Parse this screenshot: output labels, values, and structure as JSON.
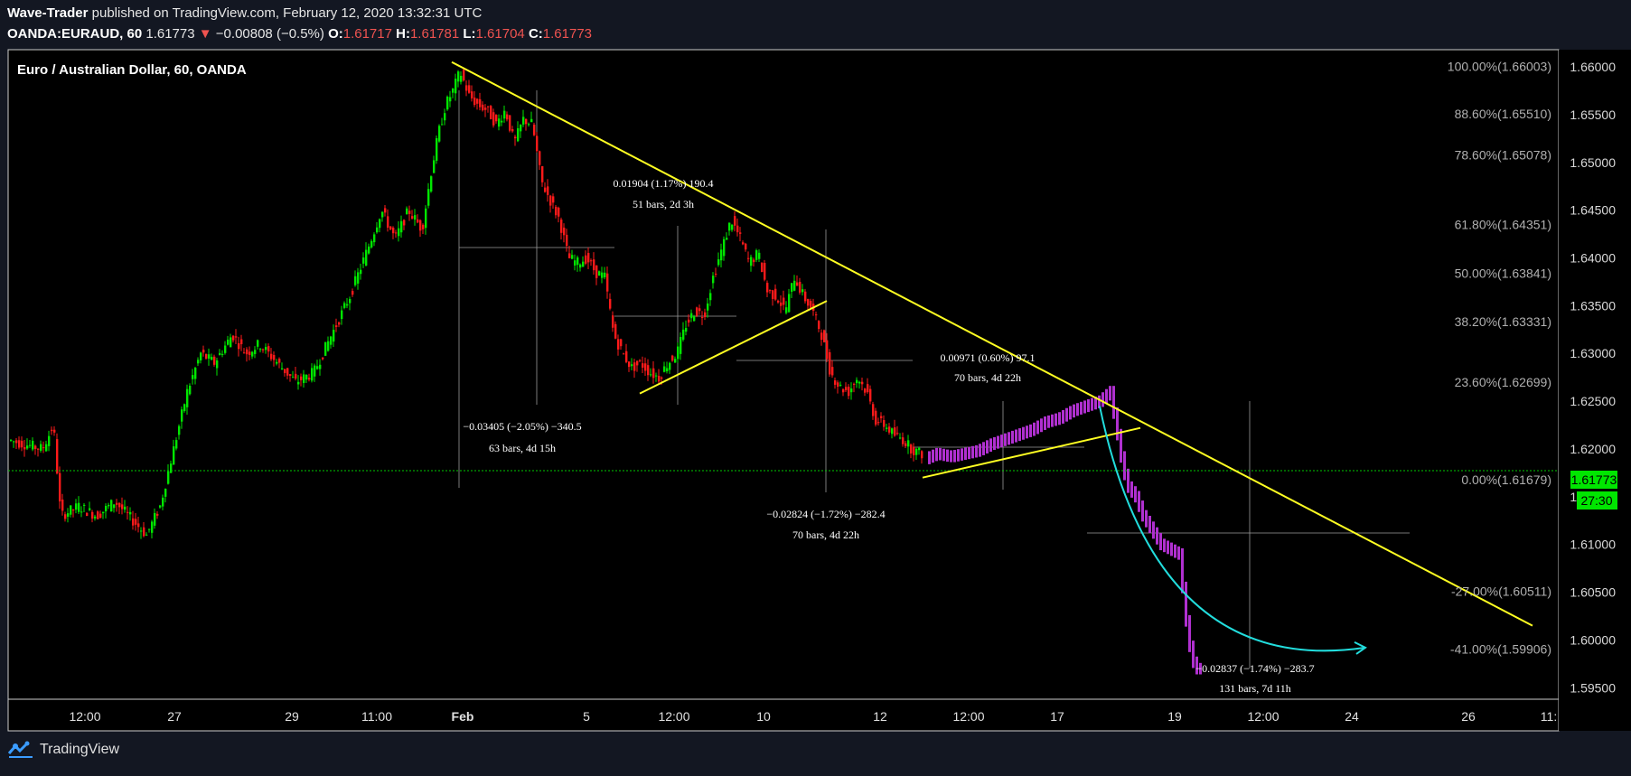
{
  "header": {
    "author": "Wave-Trader",
    "published_text": "published on TradingView.com, February 12, 2020 13:32:31 UTC",
    "symbol": "OANDA:EURAUD, 60",
    "last_price": "1.61773",
    "change_arrow": "▼",
    "change": "−0.00808 (−0.5%)",
    "o_label": "O:",
    "o_value": "1.61717",
    "h_label": "H:",
    "h_value": "1.61781",
    "l_label": "L:",
    "l_value": "1.61704",
    "c_label": "C:",
    "c_value": "1.61773"
  },
  "footer": {
    "brand": "TradingView"
  },
  "colors": {
    "background": "#000000",
    "page": "#131722",
    "up": "#00e600",
    "down": "#ff1a1a",
    "projection": "#b030d0",
    "trendline": "#ffff22",
    "curve": "#22dddd",
    "price_tag": "#00e600"
  },
  "chart_data": {
    "type": "candlestick",
    "title": "Euro / Australian Dollar, 60, OANDA",
    "ylim": [
      1.5938,
      1.6618
    ],
    "y_ticks": [
      "1.66000",
      "1.65500",
      "1.65000",
      "1.64500",
      "1.64000",
      "1.63500",
      "1.63000",
      "1.62500",
      "1.62000",
      "1.61500",
      "1.61000",
      "1.60500",
      "1.60000",
      "1.59500"
    ],
    "x_ticks": [
      "12:00",
      "27",
      "29",
      "11:00",
      "Feb",
      "5",
      "12:00",
      "10",
      "12",
      "12:00",
      "17",
      "19",
      "12:00",
      "24",
      "26",
      "11:"
    ],
    "current_price": "1.61773",
    "countdown": "27:30",
    "fib_levels": [
      {
        "label": "100.00%(1.66003)",
        "value": 1.66003
      },
      {
        "label": "88.60%(1.65510)",
        "value": 1.6551
      },
      {
        "label": "78.60%(1.65078)",
        "value": 1.65078
      },
      {
        "label": "61.80%(1.64351)",
        "value": 1.64351
      },
      {
        "label": "50.00%(1.63841)",
        "value": 1.63841
      },
      {
        "label": "38.20%(1.63331)",
        "value": 1.63331
      },
      {
        "label": "23.60%(1.62699)",
        "value": 1.62699
      },
      {
        "label": "0.00%(1.61679)",
        "value": 1.61679
      },
      {
        "label": "-27.00%(1.60511)",
        "value": 1.60511
      },
      {
        "label": "-41.00%(1.59906)",
        "value": 1.59906
      }
    ],
    "measurements": [
      {
        "line1": "0.01904 (1.17%) 190.4",
        "line2": "51 bars, 2d 3h"
      },
      {
        "line1": "−0.03405 (−2.05%) −340.5",
        "line2": "63 bars, 4d 15h"
      },
      {
        "line1": "0.00971 (0.60%) 97.1",
        "line2": "70 bars, 4d 22h"
      },
      {
        "line1": "−0.02824 (−1.72%) −282.4",
        "line2": "70 bars, 4d 22h"
      },
      {
        "line1": "−0.02837 (−1.74%) −283.7",
        "line2": "131 bars, 7d 11h"
      }
    ],
    "price_path": [
      [
        0,
        1.621
      ],
      [
        40,
        1.62
      ],
      [
        52,
        1.6225
      ],
      [
        60,
        1.613
      ],
      [
        80,
        1.614
      ],
      [
        100,
        1.613
      ],
      [
        120,
        1.6145
      ],
      [
        140,
        1.6125
      ],
      [
        155,
        1.611
      ],
      [
        170,
        1.614
      ],
      [
        185,
        1.62
      ],
      [
        200,
        1.626
      ],
      [
        215,
        1.63
      ],
      [
        230,
        1.629
      ],
      [
        250,
        1.632
      ],
      [
        265,
        1.63
      ],
      [
        280,
        1.631
      ],
      [
        300,
        1.629
      ],
      [
        320,
        1.627
      ],
      [
        340,
        1.628
      ],
      [
        360,
        1.632
      ],
      [
        380,
        1.636
      ],
      [
        400,
        1.641
      ],
      [
        415,
        1.645
      ],
      [
        430,
        1.642
      ],
      [
        445,
        1.645
      ],
      [
        460,
        1.643
      ],
      [
        470,
        1.649
      ],
      [
        478,
        1.653
      ],
      [
        486,
        1.656
      ],
      [
        494,
        1.6575
      ],
      [
        502,
        1.6595
      ],
      [
        512,
        1.657
      ],
      [
        522,
        1.656
      ],
      [
        532,
        1.6555
      ],
      [
        542,
        1.654
      ],
      [
        552,
        1.6555
      ],
      [
        562,
        1.652
      ],
      [
        572,
        1.6545
      ],
      [
        582,
        1.654
      ],
      [
        592,
        1.648
      ],
      [
        602,
        1.646
      ],
      [
        612,
        1.644
      ],
      [
        622,
        1.64
      ],
      [
        632,
        1.6395
      ],
      [
        642,
        1.64
      ],
      [
        652,
        1.6385
      ],
      [
        662,
        1.638
      ],
      [
        672,
        1.632
      ],
      [
        682,
        1.63
      ],
      [
        692,
        1.6285
      ],
      [
        702,
        1.629
      ],
      [
        712,
        1.628
      ],
      [
        722,
        1.6275
      ],
      [
        732,
        1.629
      ],
      [
        742,
        1.63
      ],
      [
        752,
        1.633
      ],
      [
        762,
        1.6345
      ],
      [
        772,
        1.634
      ],
      [
        782,
        1.638
      ],
      [
        792,
        1.641
      ],
      [
        802,
        1.644
      ],
      [
        812,
        1.642
      ],
      [
        822,
        1.6395
      ],
      [
        832,
        1.6405
      ],
      [
        842,
        1.6365
      ],
      [
        852,
        1.636
      ],
      [
        862,
        1.6345
      ],
      [
        872,
        1.638
      ],
      [
        882,
        1.636
      ],
      [
        892,
        1.6345
      ],
      [
        902,
        1.632
      ],
      [
        912,
        1.628
      ],
      [
        922,
        1.6265
      ],
      [
        932,
        1.626
      ],
      [
        942,
        1.6275
      ],
      [
        952,
        1.626
      ],
      [
        962,
        1.623
      ],
      [
        972,
        1.6225
      ],
      [
        982,
        1.6215
      ],
      [
        992,
        1.621
      ],
      [
        1002,
        1.62
      ],
      [
        1012,
        1.6195
      ]
    ],
    "projection_path": [
      [
        1018,
        1.619
      ],
      [
        1030,
        1.6195
      ],
      [
        1045,
        1.6192
      ],
      [
        1060,
        1.6195
      ],
      [
        1075,
        1.6198
      ],
      [
        1090,
        1.6205
      ],
      [
        1105,
        1.621
      ],
      [
        1120,
        1.6215
      ],
      [
        1135,
        1.622
      ],
      [
        1150,
        1.6228
      ],
      [
        1165,
        1.6232
      ],
      [
        1180,
        1.624
      ],
      [
        1195,
        1.6245
      ],
      [
        1210,
        1.625
      ],
      [
        1222,
        1.626
      ],
      [
        1230,
        1.6215
      ],
      [
        1236,
        1.618
      ],
      [
        1242,
        1.616
      ],
      [
        1250,
        1.615
      ],
      [
        1258,
        1.613
      ],
      [
        1268,
        1.6115
      ],
      [
        1278,
        1.61
      ],
      [
        1288,
        1.6095
      ],
      [
        1298,
        1.609
      ],
      [
        1306,
        1.602
      ],
      [
        1312,
        1.598
      ],
      [
        1318,
        1.597
      ]
    ]
  }
}
